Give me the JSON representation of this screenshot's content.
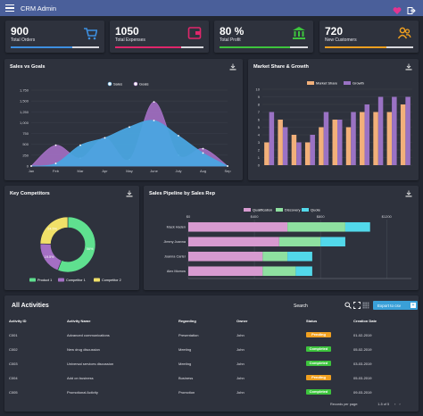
{
  "app": {
    "title": "CRM Admin"
  },
  "stats": [
    {
      "value": "900",
      "label": "Total Orders",
      "progress": 0.7,
      "color": "#3d8fe0",
      "icon": "cart-icon"
    },
    {
      "value": "1050",
      "label": "Total Expenses",
      "progress": 0.75,
      "color": "#e0266b",
      "icon": "wallet-icon"
    },
    {
      "value": "80 %",
      "label": "Total Profit",
      "progress": 0.8,
      "color": "#3dc43d",
      "icon": "bank-icon"
    },
    {
      "value": "720",
      "label": "New Customers",
      "progress": 0.7,
      "color": "#f0a020",
      "icon": "users-icon"
    }
  ],
  "sales": {
    "title": "Sales vs Goals",
    "chart_data": {
      "type": "area",
      "categories": [
        "Jan",
        "Feb",
        "Mar",
        "Apr",
        "May",
        "June",
        "July",
        "Aug",
        "Sep"
      ],
      "ylim": [
        0,
        1750
      ],
      "yticks": [
        "0",
        "250",
        "500",
        "750",
        "1,000",
        "1,250",
        "1,500",
        "1,750"
      ],
      "series": [
        {
          "name": "Sales",
          "values": [
            0,
            60,
            480,
            650,
            900,
            1050,
            700,
            300,
            0
          ],
          "color": "#4aa5e0"
        },
        {
          "name": "Goals",
          "values": [
            0,
            480,
            180,
            650,
            150,
            1480,
            250,
            400,
            0
          ],
          "color": "#a46fc4"
        }
      ]
    }
  },
  "market": {
    "title": "Market Share & Growth",
    "chart_data": {
      "type": "bar",
      "ylim": [
        0,
        10
      ],
      "yticks": [
        "0",
        "1",
        "2",
        "3",
        "4",
        "5",
        "6",
        "7",
        "8",
        "9",
        "10"
      ],
      "series": [
        {
          "name": "Market Share",
          "values": [
            3,
            6,
            4,
            3,
            5,
            6,
            5,
            7,
            7,
            7,
            8
          ],
          "color": "#f2b07a"
        },
        {
          "name": "Growth",
          "values": [
            7,
            5,
            3,
            4,
            7,
            6,
            7,
            8,
            9,
            9,
            9
          ],
          "color": "#9a72c4"
        }
      ]
    }
  },
  "competitors": {
    "title": "Key Competitors",
    "chart_data": {
      "type": "pie",
      "labels": [
        "Product 1",
        "Competitor 1",
        "Competitor 2"
      ],
      "values": [
        56.0,
        19.5,
        24.5
      ],
      "value_labels": [
        "56%",
        "19.5%",
        "24.5%"
      ],
      "colors": [
        "#5fe08f",
        "#a46fc4",
        "#f0e068"
      ]
    }
  },
  "pipeline": {
    "title": "Sales Pipeline by Sales Rep",
    "chart_data": {
      "type": "bar",
      "orientation": "horizontal",
      "stacked": true,
      "categories": [
        "Mack Haden",
        "Jimmy Joanna",
        "Joanna Carter",
        "Alex Morrow"
      ],
      "xticks": [
        "$0",
        "$400",
        "$800",
        "$1200"
      ],
      "xlim": [
        0,
        1350
      ],
      "series": [
        {
          "name": "Qualification",
          "values": [
            600,
            550,
            450,
            450
          ],
          "color": "#d79ad0"
        },
        {
          "name": "Discovery",
          "values": [
            350,
            250,
            150,
            200
          ],
          "color": "#8ee0a0"
        },
        {
          "name": "Quote",
          "values": [
            150,
            150,
            150,
            100
          ],
          "color": "#52d8ea"
        }
      ]
    }
  },
  "activities": {
    "title": "All Activities",
    "search_label": "Search",
    "export_label": "Export to csv",
    "columns": [
      "Activity ID",
      "Activity Name",
      "Regarding",
      "Owner",
      "Status",
      "Creation Date"
    ],
    "rows": [
      {
        "id": "C001",
        "name": "Advanced communications",
        "regarding": "Presentation",
        "owner": "John",
        "status": "Pending",
        "date": "01-02-2019"
      },
      {
        "id": "C002",
        "name": "New drug discussion",
        "regarding": "Meeting",
        "owner": "John",
        "status": "Completed",
        "date": "05-02-2019"
      },
      {
        "id": "C003",
        "name": "Universal services discussion",
        "regarding": "Meeting",
        "owner": "John",
        "status": "Completed",
        "date": "03-03-2019"
      },
      {
        "id": "C004",
        "name": "Add on business",
        "regarding": "Business",
        "owner": "John",
        "status": "Pending",
        "date": "05-03-2019"
      },
      {
        "id": "C005",
        "name": "Promotional Activity",
        "regarding": "Promotion",
        "owner": "John",
        "status": "Completed",
        "date": "09-03-2019"
      }
    ],
    "status_colors": {
      "Pending": "#f0a020",
      "Completed": "#3dc43d"
    },
    "footer": {
      "records_label": "Records per page:",
      "range": "1-5 of 5"
    }
  }
}
